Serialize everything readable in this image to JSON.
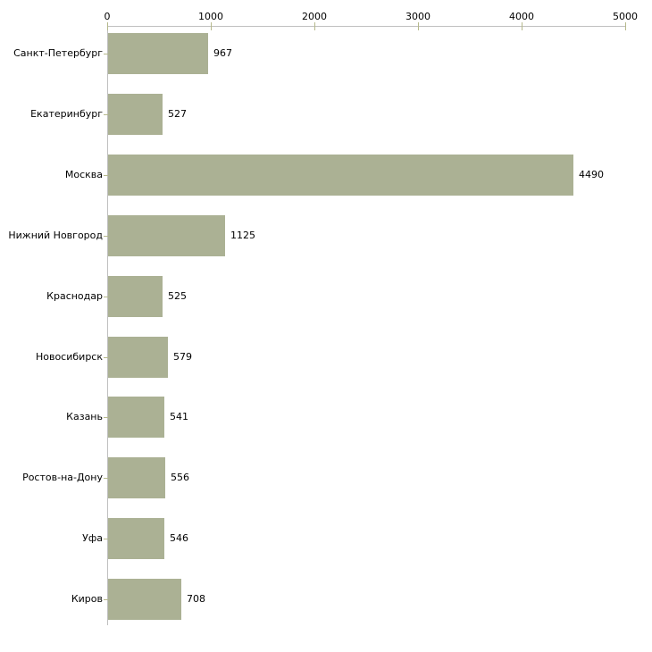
{
  "chart_data": {
    "type": "bar",
    "orientation": "horizontal",
    "title": "",
    "xlabel": "",
    "ylabel": "",
    "categories": [
      "Санкт-Петербург",
      "Екатеринбург",
      "Москва",
      "Нижний Новгород",
      "Краснодар",
      "Новосибирск",
      "Казань",
      "Ростов-на-Дону",
      "Уфа",
      "Киров"
    ],
    "values": [
      967,
      527,
      4490,
      1125,
      525,
      579,
      541,
      556,
      546,
      708
    ],
    "value_labels": [
      "967",
      "527",
      "4490",
      "1125",
      "525",
      "579",
      "541",
      "556",
      "546",
      "708"
    ],
    "xlim": [
      0,
      5000
    ],
    "x_ticks": [
      0,
      1000,
      2000,
      3000,
      4000,
      5000
    ],
    "x_tick_labels": [
      "0",
      "1000",
      "2000",
      "3000",
      "4000",
      "5000"
    ],
    "grid": false,
    "legend": false,
    "bar_color": "#ABB194",
    "axis_color": "#C0C0C0",
    "tick_color": "#B6B98C",
    "text_color": "#000000",
    "background_color": "#FFFFFF"
  }
}
